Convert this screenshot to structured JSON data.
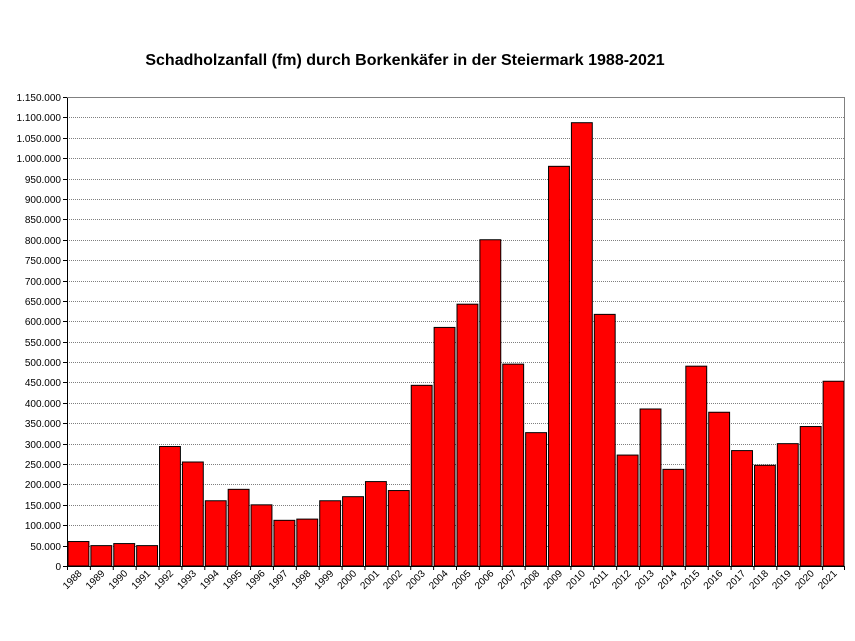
{
  "chart_data": {
    "type": "bar",
    "title": "Schadholzanfall (fm) durch Borkenkäfer in der Steiermark 1988-2021",
    "xlabel": "",
    "ylabel": "",
    "ylim": [
      0,
      1150000
    ],
    "grid": true,
    "legend": "none",
    "bar_color": "#ff0000",
    "categories": [
      "1988",
      "1989",
      "1990",
      "1991",
      "1992",
      "1993",
      "1994",
      "1995",
      "1996",
      "1997",
      "1998",
      "1999",
      "2000",
      "2001",
      "2002",
      "2003",
      "2004",
      "2005",
      "2006",
      "2007",
      "2008",
      "2009",
      "2010",
      "2011",
      "2012",
      "2013",
      "2014",
      "2015",
      "2016",
      "2017",
      "2018",
      "2019",
      "2020",
      "2021"
    ],
    "values": [
      60000,
      50000,
      55000,
      50000,
      293000,
      255000,
      160000,
      188000,
      150000,
      112000,
      115000,
      160000,
      170000,
      207000,
      185000,
      443000,
      585000,
      642000,
      800000,
      495000,
      327000,
      980000,
      1087000,
      617000,
      272000,
      385000,
      237000,
      490000,
      377000,
      283000,
      247000,
      300000,
      342000,
      453000
    ],
    "yticks": [
      0,
      50000,
      100000,
      150000,
      200000,
      250000,
      300000,
      350000,
      400000,
      450000,
      500000,
      550000,
      600000,
      650000,
      700000,
      750000,
      800000,
      850000,
      900000,
      950000,
      1000000,
      1050000,
      1100000,
      1150000
    ],
    "ytick_labels": [
      "0",
      "50.000",
      "100.000",
      "150.000",
      "200.000",
      "250.000",
      "300.000",
      "350.000",
      "400.000",
      "450.000",
      "500.000",
      "550.000",
      "600.000",
      "650.000",
      "700.000",
      "750.000",
      "800.000",
      "850.000",
      "900.000",
      "950.000",
      "1.000.000",
      "1.050.000",
      "1.100.000",
      "1.150.000"
    ]
  }
}
